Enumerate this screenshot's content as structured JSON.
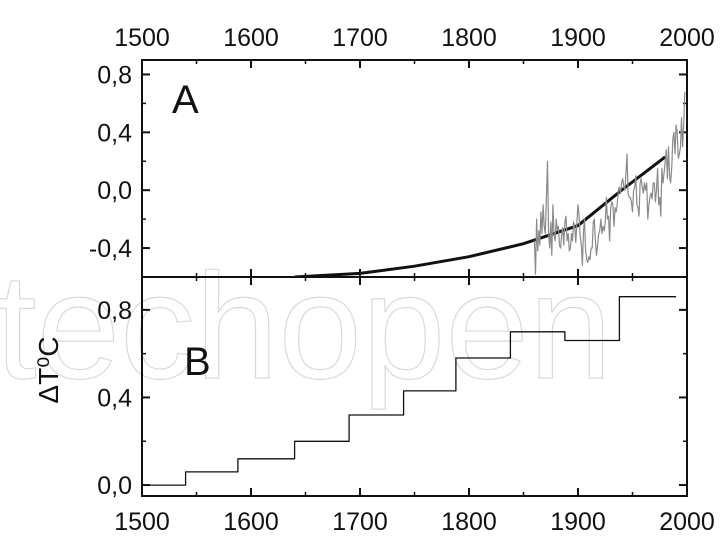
{
  "chart_data": [
    {
      "panel": "A",
      "type": "line",
      "panel_label": "A",
      "xlim": [
        1500,
        2000
      ],
      "ylim": [
        -0.6,
        0.9
      ],
      "x_ticks": [
        1500,
        1600,
        1700,
        1800,
        1900,
        2000
      ],
      "x_tick_labels": [
        "1500",
        "1600",
        "1700",
        "1800",
        "1900",
        "2000"
      ],
      "y_ticks": [
        -0.4,
        0.0,
        0.4,
        0.8
      ],
      "y_tick_labels": [
        "-0,4",
        "0,0",
        "0,4",
        "0,8"
      ],
      "series": [
        {
          "style": "thick-black",
          "x": [
            1640,
            1700,
            1750,
            1800,
            1850,
            1900,
            1940,
            1980
          ],
          "y": [
            -0.6,
            -0.575,
            -0.525,
            -0.46,
            -0.37,
            -0.245,
            0.0,
            0.23
          ]
        },
        {
          "style": "thin-gray",
          "x": [
            1860,
            1861,
            1862,
            1863,
            1864,
            1865,
            1866,
            1867,
            1868,
            1869,
            1870,
            1871,
            1872,
            1873,
            1874,
            1875,
            1876,
            1877,
            1878,
            1879,
            1880,
            1881,
            1882,
            1883,
            1884,
            1885,
            1886,
            1887,
            1888,
            1889,
            1890,
            1891,
            1892,
            1893,
            1894,
            1895,
            1896,
            1897,
            1898,
            1899,
            1900,
            1901,
            1902,
            1903,
            1904,
            1905,
            1906,
            1907,
            1908,
            1909,
            1910,
            1911,
            1912,
            1913,
            1914,
            1915,
            1916,
            1917,
            1918,
            1919,
            1920,
            1921,
            1922,
            1923,
            1924,
            1925,
            1926,
            1927,
            1928,
            1929,
            1930,
            1931,
            1932,
            1933,
            1934,
            1935,
            1936,
            1937,
            1938,
            1939,
            1940,
            1941,
            1942,
            1943,
            1944,
            1945,
            1946,
            1947,
            1948,
            1949,
            1950,
            1951,
            1952,
            1953,
            1954,
            1955,
            1956,
            1957,
            1958,
            1959,
            1960,
            1961,
            1962,
            1963,
            1964,
            1965,
            1966,
            1967,
            1968,
            1969,
            1970,
            1971,
            1972,
            1973,
            1974,
            1975,
            1976,
            1977,
            1978,
            1979,
            1980,
            1981,
            1982,
            1983,
            1984,
            1985,
            1986,
            1987,
            1988,
            1989,
            1990,
            1991,
            1992,
            1993,
            1994,
            1995,
            1996,
            1997,
            1998
          ],
          "y": [
            -0.35,
            -0.58,
            -0.2,
            -0.42,
            -0.28,
            -0.38,
            -0.15,
            -0.3,
            -0.1,
            -0.25,
            -0.3,
            -0.05,
            0.2,
            -0.3,
            -0.4,
            -0.22,
            -0.45,
            -0.1,
            -0.3,
            -0.35,
            -0.2,
            -0.28,
            -0.25,
            -0.38,
            -0.4,
            -0.3,
            -0.26,
            -0.38,
            -0.22,
            -0.18,
            -0.35,
            -0.3,
            -0.42,
            -0.4,
            -0.3,
            -0.35,
            -0.22,
            -0.25,
            -0.36,
            -0.22,
            -0.1,
            -0.18,
            -0.32,
            -0.38,
            -0.52,
            -0.28,
            -0.2,
            -0.42,
            -0.48,
            -0.5,
            -0.46,
            -0.48,
            -0.4,
            -0.4,
            -0.22,
            -0.2,
            -0.35,
            -0.45,
            -0.38,
            -0.3,
            -0.28,
            -0.2,
            -0.3,
            -0.25,
            -0.28,
            -0.22,
            -0.05,
            -0.2,
            -0.18,
            -0.35,
            -0.12,
            -0.08,
            -0.1,
            -0.25,
            -0.12,
            -0.15,
            -0.1,
            0.0,
            0.02,
            -0.02,
            0.05,
            0.08,
            0.02,
            0.0,
            0.12,
            0.25,
            -0.02,
            -0.05,
            -0.05,
            -0.08,
            -0.15,
            0.0,
            0.02,
            0.1,
            -0.1,
            -0.12,
            -0.18,
            0.05,
            0.08,
            0.02,
            -0.02,
            0.05,
            0.0,
            0.05,
            -0.2,
            -0.1,
            -0.05,
            -0.02,
            -0.06,
            0.05,
            0.05,
            -0.08,
            0.0,
            0.15,
            -0.1,
            -0.05,
            -0.18,
            0.15,
            0.05,
            0.12,
            0.2,
            0.28,
            0.08,
            0.3,
            0.1,
            0.05,
            0.15,
            0.35,
            0.4,
            0.25,
            0.45,
            0.4,
            0.22,
            0.25,
            0.3,
            0.5,
            0.3,
            0.45,
            0.68
          ]
        }
      ]
    },
    {
      "panel": "B",
      "type": "line",
      "panel_label": "B",
      "ylabel": "ΔT⁰C",
      "xlim": [
        1500,
        2000
      ],
      "ylim": [
        -0.05,
        0.95
      ],
      "x_ticks": [
        1500,
        1600,
        1700,
        1800,
        1900,
        2000
      ],
      "x_tick_labels": [
        "1500",
        "1600",
        "1700",
        "1800",
        "1900",
        "2000"
      ],
      "y_ticks": [
        0.0,
        0.4,
        0.8
      ],
      "y_tick_labels": [
        "0,0",
        "0,4",
        "0,8"
      ],
      "series": [
        {
          "style": "step",
          "x": [
            1500,
            1540,
            1540,
            1588,
            1588,
            1640,
            1640,
            1690,
            1690,
            1740,
            1740,
            1788,
            1788,
            1838,
            1838,
            1888,
            1888,
            1938,
            1938,
            1990
          ],
          "y": [
            0.0,
            0.0,
            0.06,
            0.06,
            0.12,
            0.12,
            0.2,
            0.2,
            0.32,
            0.32,
            0.43,
            0.43,
            0.58,
            0.58,
            0.7,
            0.7,
            0.66,
            0.66,
            0.86,
            0.86
          ]
        }
      ]
    }
  ],
  "watermark": {
    "text": "techopen"
  }
}
